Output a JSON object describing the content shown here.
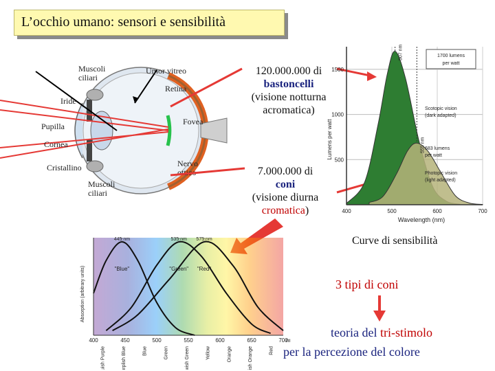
{
  "title": "L’occhio umano: sensori e sensibilità",
  "eye": {
    "muscoli_ciliari_top": "Muscoli\nciliari",
    "umor_vitreo": "Umor vitreo",
    "retina": "Retina",
    "iride": "Iride",
    "pupilla": "Pupilla",
    "cornea": "Cornea",
    "fovea": "Fovea",
    "cristallino": "Cristallino",
    "nervo_ottico": "Nervo\nottico",
    "muscoli_ciliari_bottom": "Muscoli\nciliari"
  },
  "rods": {
    "count": "120.000.000 di",
    "name": "bastoncelli",
    "desc1": "(visione notturna",
    "desc2": "acromatica)"
  },
  "cones": {
    "count": "7.000.000 di",
    "name": "coni",
    "desc1": "(visione diurna",
    "desc2_colored": "cromatica",
    "desc2_end": ")"
  },
  "caption_sensitivity": "Curve di sensibilità",
  "three_types": "3 tipi di coni",
  "tristimulus": {
    "line1_a": "teoria del ",
    "line1_b": "tri-stimolo",
    "line2": "per la percezione del colore"
  },
  "colors": {
    "rods_fill": "#2e7d32",
    "photopic_fill": "#b5b37a",
    "arrow": "#e53935",
    "title_bg": "#fff9b0"
  },
  "chart_data": [
    {
      "type": "area",
      "xlabel": "Wavelength (nm)",
      "ylabel": "Lumens per watt",
      "xlim": [
        400,
        700
      ],
      "ylim": [
        0,
        1750
      ],
      "x_ticks": [
        400,
        500,
        600,
        700
      ],
      "y_ticks": [
        500,
        1000,
        1500
      ],
      "annotations": [
        "1700 lumens per watt",
        "Scotopic vision (dark adapted)",
        "683 lumens per watt",
        "Photopic vision (light adapted)",
        "507 nm",
        "555 nm"
      ],
      "series": [
        {
          "name": "Scotopic vision (dark adapted)",
          "peak_nm": 507,
          "peak_value": 1700,
          "x": [
            400,
            440,
            470,
            490,
            507,
            530,
            560,
            590,
            620,
            650
          ],
          "y": [
            15,
            250,
            900,
            1450,
            1700,
            1400,
            700,
            200,
            40,
            5
          ]
        },
        {
          "name": "Photopic vision (light adapted)",
          "peak_nm": 555,
          "peak_value": 683,
          "x": [
            450,
            480,
            510,
            535,
            555,
            580,
            610,
            640,
            670,
            700
          ],
          "y": [
            25,
            90,
            340,
            600,
            683,
            590,
            340,
            100,
            20,
            3
          ]
        }
      ]
    },
    {
      "type": "line",
      "xlabel": "",
      "ylabel": "Absorption (arbitrary units)",
      "xlim": [
        400,
        700
      ],
      "x_ticks": [
        400,
        450,
        500,
        550,
        600,
        650,
        700
      ],
      "x_unit": "nm",
      "peaks": [
        "445 nm",
        "535 nm",
        "575 nm"
      ],
      "color_names": [
        "Bluish Purple",
        "Purplish Blue",
        "Blue",
        "Green",
        "Yellowish Green",
        "Yellow",
        "Orange",
        "Reddish Orange",
        "Red"
      ],
      "series": [
        {
          "name": "\"Blue\"",
          "peak_nm": 445,
          "x": [
            400,
            420,
            445,
            470,
            500,
            530,
            560
          ],
          "y": [
            0.45,
            0.8,
            1.0,
            0.8,
            0.35,
            0.08,
            0
          ]
        },
        {
          "name": "\"Green\"",
          "peak_nm": 535,
          "x": [
            420,
            460,
            500,
            535,
            570,
            610,
            650,
            680
          ],
          "y": [
            0.05,
            0.3,
            0.75,
            1.0,
            0.85,
            0.45,
            0.12,
            0.02
          ]
        },
        {
          "name": "\"Red\"",
          "peak_nm": 575,
          "x": [
            430,
            470,
            520,
            575,
            620,
            660,
            700
          ],
          "y": [
            0.05,
            0.22,
            0.6,
            1.0,
            0.75,
            0.3,
            0.05
          ]
        }
      ]
    }
  ]
}
